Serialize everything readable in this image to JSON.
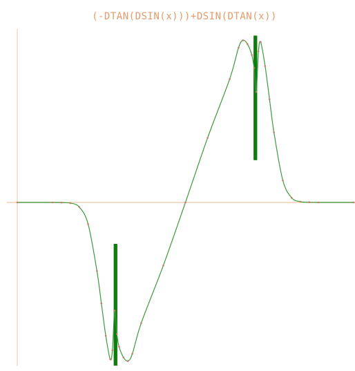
{
  "chart_data": {
    "type": "line",
    "title": "(-DTAN(DSIN(x)))+DSIN(DTAN(x))",
    "xlabel": "",
    "ylabel": "",
    "xlim": [
      -3.8,
      3.8
    ],
    "ylim": [
      -0.92,
      0.93
    ],
    "grid": false,
    "legend": "none",
    "axes_visible": true,
    "series": [
      {
        "function": "(-DTAN(DSIN(x)))+DSIN(DTAN(x))",
        "sample_step": 0.0015,
        "x": [
          -3.8,
          -3.0,
          -2.8,
          -2.6,
          -2.4,
          -2.2,
          -2.0,
          -1.9,
          -1.8,
          -1.7,
          -1.65,
          -1.6,
          -1.55,
          -1.5,
          -1.4,
          -1.3,
          -1.2,
          -1.0,
          -0.5,
          0.0,
          0.5,
          1.0,
          1.2,
          1.3,
          1.4,
          1.5,
          1.55,
          1.6,
          1.65,
          1.7,
          1.8,
          1.9,
          2.0,
          2.2,
          2.4,
          2.6,
          2.8,
          3.0,
          3.8
        ],
        "y": [
          0.0,
          0.0,
          -0.001,
          -0.004,
          -0.025,
          -0.12,
          -0.38,
          -0.56,
          -0.74,
          -0.87,
          -0.82,
          -0.6,
          -0.73,
          -0.8,
          -0.86,
          -0.88,
          -0.84,
          -0.67,
          -0.35,
          0.0,
          0.35,
          0.67,
          0.84,
          0.88,
          0.86,
          0.8,
          0.73,
          0.6,
          0.82,
          0.87,
          0.74,
          0.56,
          0.38,
          0.12,
          0.025,
          0.004,
          0.001,
          0.0,
          0.0
        ],
        "line_color": "#3a9a3a",
        "point_color": "#c87a6a",
        "fill_color": "#1e9a1e"
      }
    ],
    "colors": {
      "axis": "#f2dcc8",
      "title": "#e59a6a",
      "background": "#ffffff"
    }
  }
}
